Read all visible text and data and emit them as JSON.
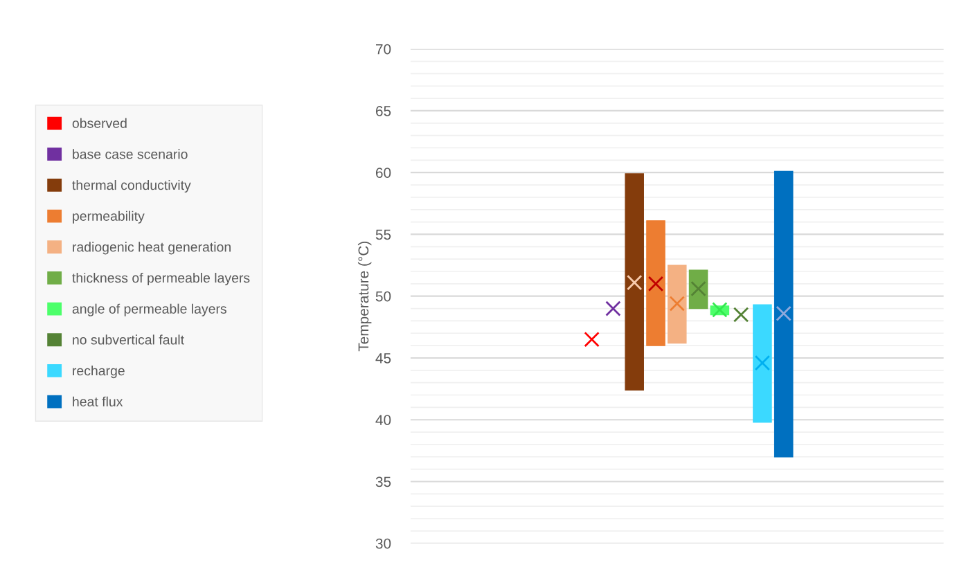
{
  "chart_data": {
    "type": "bar",
    "ylabel": "Temperature (°C)",
    "categories": [
      null,
      null,
      null,
      null,
      null,
      null,
      null,
      null,
      null,
      null,
      null,
      null,
      null,
      null,
      null,
      null,
      null,
      null,
      null,
      null,
      null,
      null,
      null,
      null,
      null
    ],
    "ylim": [
      30,
      70
    ],
    "yticks": [
      30,
      {
        "value": 31,
        "label": null
      },
      {
        "value": 32,
        "label": null
      },
      {
        "value": 33,
        "label": null
      },
      {
        "value": 34,
        "label": null
      },
      35,
      {
        "value": 36,
        "label": null
      },
      {
        "value": 37,
        "label": null
      },
      {
        "value": 38,
        "label": null
      },
      {
        "value": 39,
        "label": null
      },
      40,
      {
        "value": 41,
        "label": null
      },
      {
        "value": 42,
        "label": null
      },
      {
        "value": 43,
        "label": null
      },
      {
        "value": 44,
        "label": null
      },
      45,
      {
        "value": 46,
        "label": null
      },
      {
        "value": 47,
        "label": null
      },
      {
        "value": 48,
        "label": null
      },
      {
        "value": 49,
        "label": null
      },
      50,
      {
        "value": 51,
        "label": null
      },
      {
        "value": 52,
        "label": null
      },
      {
        "value": 53,
        "label": null
      },
      {
        "value": 54,
        "label": null
      },
      55,
      {
        "value": 56,
        "label": null
      },
      {
        "value": 57,
        "label": null
      },
      {
        "value": 58,
        "label": null
      },
      {
        "value": 59,
        "label": null
      },
      60,
      {
        "value": 61,
        "label": null
      },
      {
        "value": 62,
        "label": null
      },
      {
        "value": 63,
        "label": null
      },
      {
        "value": 64,
        "label": null
      },
      65,
      {
        "value": 66,
        "label": null
      },
      {
        "value": 67,
        "label": null
      },
      {
        "value": 68,
        "label": null
      },
      {
        "value": 69,
        "label": null
      },
      70
    ],
    "grid": "y",
    "legend": "left",
    "marker": "cross",
    "series": [
      {
        "type": "scatter",
        "name": "observed",
        "color": "#ff0000",
        "values": [
          null,
          null,
          null,
          null,
          null,
          null,
          null,
          null,
          46.5,
          null,
          null,
          null,
          null,
          null,
          null,
          null,
          null,
          null,
          null,
          null,
          null,
          null,
          null,
          null,
          null
        ]
      },
      {
        "type": "scatter",
        "name": "base case scenario",
        "color": "#7030a0",
        "values": [
          null,
          null,
          null,
          null,
          null,
          null,
          null,
          null,
          null,
          49.0,
          null,
          null,
          null,
          null,
          null,
          null,
          null,
          null,
          null,
          null,
          null,
          null,
          null,
          null,
          null
        ]
      },
      {
        "name": "thermal conductivity",
        "color": "#843c0c",
        "base": [
          null,
          null,
          null,
          null,
          null,
          null,
          null,
          null,
          null,
          null,
          42.4,
          null,
          null,
          null,
          null,
          null,
          null,
          null,
          null,
          null,
          null,
          null,
          null,
          null,
          null
        ],
        "values": [
          null,
          null,
          null,
          null,
          null,
          null,
          null,
          null,
          null,
          null,
          17.5,
          null,
          null,
          null,
          null,
          null,
          null,
          null,
          null,
          null,
          null,
          null,
          null,
          null,
          null
        ]
      },
      {
        "name": "permeability",
        "color": "#ed7d31",
        "base": [
          null,
          null,
          null,
          null,
          null,
          null,
          null,
          null,
          null,
          null,
          null,
          46.0,
          null,
          null,
          null,
          null,
          null,
          null,
          null,
          null,
          null,
          null,
          null,
          null,
          null
        ],
        "values": [
          null,
          null,
          null,
          null,
          null,
          null,
          null,
          null,
          null,
          null,
          null,
          10.1,
          null,
          null,
          null,
          null,
          null,
          null,
          null,
          null,
          null,
          null,
          null,
          null,
          null
        ]
      },
      {
        "name": "radiogenic heat generation",
        "color": "#f4b183",
        "base": [
          null,
          null,
          null,
          null,
          null,
          null,
          null,
          null,
          null,
          null,
          null,
          null,
          46.2,
          null,
          null,
          null,
          null,
          null,
          null,
          null,
          null,
          null,
          null,
          null,
          null
        ],
        "values": [
          null,
          null,
          null,
          null,
          null,
          null,
          null,
          null,
          null,
          null,
          null,
          null,
          6.3,
          null,
          null,
          null,
          null,
          null,
          null,
          null,
          null,
          null,
          null,
          null,
          null
        ]
      },
      {
        "name": "thickness of permeable layers",
        "color": "#70ad47",
        "base": [
          null,
          null,
          null,
          null,
          null,
          null,
          null,
          null,
          null,
          null,
          null,
          null,
          null,
          49.0,
          null,
          null,
          null,
          null,
          null,
          null,
          null,
          null,
          null,
          null,
          null
        ],
        "values": [
          null,
          null,
          null,
          null,
          null,
          null,
          null,
          null,
          null,
          null,
          null,
          null,
          null,
          3.1,
          null,
          null,
          null,
          null,
          null,
          null,
          null,
          null,
          null,
          null,
          null
        ]
      },
      {
        "name": "angle of permeable layers",
        "color": "#4cff6a",
        "base": [
          null,
          null,
          null,
          null,
          null,
          null,
          null,
          null,
          null,
          null,
          null,
          null,
          null,
          null,
          48.5,
          null,
          null,
          null,
          null,
          null,
          null,
          null,
          null,
          null,
          null
        ],
        "values": [
          null,
          null,
          null,
          null,
          null,
          null,
          null,
          null,
          null,
          null,
          null,
          null,
          null,
          null,
          0.7,
          null,
          null,
          null,
          null,
          null,
          null,
          null,
          null,
          null,
          null
        ]
      },
      {
        "type": "scatter",
        "name": "no subvertical fault",
        "color": "#548235",
        "values": [
          null,
          null,
          null,
          null,
          null,
          null,
          null,
          null,
          null,
          null,
          null,
          null,
          null,
          null,
          null,
          48.5,
          null,
          null,
          null,
          null,
          null,
          null,
          null,
          null,
          null
        ]
      },
      {
        "name": "recharge",
        "color": "#3bd9ff",
        "base": [
          null,
          null,
          null,
          null,
          null,
          null,
          null,
          null,
          null,
          null,
          null,
          null,
          null,
          null,
          null,
          null,
          39.8,
          null,
          null,
          null,
          null,
          null,
          null,
          null,
          null
        ],
        "values": [
          null,
          null,
          null,
          null,
          null,
          null,
          null,
          null,
          null,
          null,
          null,
          null,
          null,
          null,
          null,
          null,
          9.5,
          null,
          null,
          null,
          null,
          null,
          null,
          null,
          null
        ]
      },
      {
        "name": "heat flux",
        "color": "#0070c0",
        "base": [
          null,
          null,
          null,
          null,
          null,
          null,
          null,
          null,
          null,
          null,
          null,
          null,
          null,
          null,
          null,
          null,
          null,
          60.1,
          null,
          null,
          null,
          null,
          null,
          null,
          null
        ],
        "values": [
          null,
          null,
          null,
          null,
          null,
          null,
          null,
          null,
          null,
          null,
          null,
          null,
          null,
          null,
          null,
          null,
          null,
          -23.1,
          null,
          null,
          null,
          null,
          null,
          null,
          null
        ]
      },
      {
        "type": "scatter",
        "color": "#f8cbad",
        "values": [
          null,
          null,
          null,
          null,
          null,
          null,
          null,
          null,
          null,
          null,
          51.1,
          null,
          null,
          null,
          null,
          null,
          null,
          null,
          null,
          null,
          null,
          null,
          null,
          null,
          null
        ]
      },
      {
        "type": "scatter",
        "color": "#c00000",
        "values": [
          null,
          null,
          null,
          null,
          null,
          null,
          null,
          null,
          null,
          null,
          null,
          51.0,
          null,
          null,
          null,
          null,
          null,
          null,
          null,
          null,
          null,
          null,
          null,
          null,
          null
        ]
      },
      {
        "type": "scatter",
        "color": "#ed7d31",
        "values": [
          null,
          null,
          null,
          null,
          null,
          null,
          null,
          null,
          null,
          null,
          null,
          null,
          49.4,
          null,
          null,
          null,
          null,
          null,
          null,
          null,
          null,
          null,
          null,
          null,
          null
        ]
      },
      {
        "type": "scatter",
        "color": "#548235",
        "values": [
          null,
          null,
          null,
          null,
          null,
          null,
          null,
          null,
          null,
          null,
          null,
          null,
          null,
          50.6,
          null,
          null,
          null,
          null,
          null,
          null,
          null,
          null,
          null,
          null,
          null
        ]
      },
      {
        "type": "scatter",
        "color": "#33e84f",
        "values": [
          null,
          null,
          null,
          null,
          null,
          null,
          null,
          null,
          null,
          null,
          null,
          null,
          null,
          null,
          48.9,
          null,
          null,
          null,
          null,
          null,
          null,
          null,
          null,
          null,
          null
        ]
      },
      {
        "type": "scatter",
        "color": "#00b0f0",
        "values": [
          null,
          null,
          null,
          null,
          null,
          null,
          null,
          null,
          null,
          null,
          null,
          null,
          null,
          null,
          null,
          null,
          44.6,
          null,
          null,
          null,
          null,
          null,
          null,
          null,
          null
        ]
      },
      {
        "type": "scatter",
        "color": "#8fa9dc",
        "values": [
          null,
          null,
          null,
          null,
          null,
          null,
          null,
          null,
          null,
          null,
          null,
          null,
          null,
          null,
          null,
          null,
          null,
          48.6,
          null,
          null,
          null,
          null,
          null,
          null,
          null
        ]
      }
    ]
  }
}
